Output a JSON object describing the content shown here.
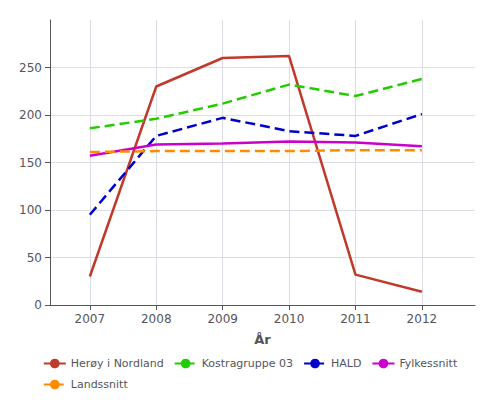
{
  "chart_data": {
    "type": "line",
    "x": [
      2007,
      2008,
      2009,
      2010,
      2011,
      2012
    ],
    "series": [
      {
        "name": "Herøy i Nordland",
        "color": "#c0392b",
        "line_style": "solid",
        "values": [
          30,
          230,
          260,
          262,
          32,
          14
        ]
      },
      {
        "name": "Kostragruppe 03",
        "color": "#22cc00",
        "line_style": "dashed",
        "values": [
          186,
          196,
          212,
          232,
          220,
          238
        ]
      },
      {
        "name": "HALD",
        "color": "#0000cc",
        "line_style": "dashed",
        "values": [
          95,
          178,
          197,
          183,
          178,
          201
        ]
      },
      {
        "name": "Fylkessnitt",
        "color": "#cc00cc",
        "line_style": "solid",
        "values": [
          157,
          169,
          170,
          172,
          171,
          167
        ]
      },
      {
        "name": "Landssnitt",
        "color": "#ff8c00",
        "line_style": "dashed",
        "values": [
          161,
          162,
          162,
          162,
          163,
          163
        ]
      }
    ],
    "xlabel": "År",
    "xlim": [
      2006.4,
      2012.8
    ],
    "xticks": [
      2007,
      2008,
      2009,
      2010,
      2011,
      2012
    ],
    "ylim": [
      0,
      300
    ],
    "yticks": [
      0,
      50,
      100,
      150,
      200,
      250
    ],
    "grid": true,
    "legend": "bottom"
  }
}
